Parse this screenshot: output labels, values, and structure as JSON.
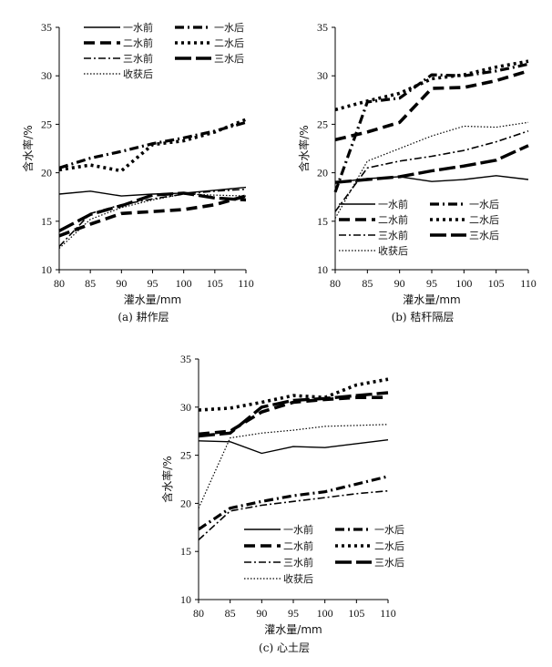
{
  "chart_data": [
    {
      "type": "line",
      "id": "a",
      "caption": "(a) 耕作层",
      "xlabel": "灌水量/mm",
      "ylabel": "含水率/%",
      "xlim": [
        80,
        110
      ],
      "ylim": [
        10,
        35
      ],
      "xticks": [
        80,
        85,
        90,
        95,
        100,
        105,
        110
      ],
      "yticks": [
        10,
        15,
        20,
        25,
        30,
        35
      ],
      "x": [
        80,
        85,
        90,
        95,
        100,
        105,
        110
      ],
      "legend_placement": "top",
      "series": [
        {
          "name": "一水前",
          "style": "solid",
          "values": [
            17.8,
            18.1,
            17.6,
            17.8,
            17.9,
            18.2,
            18.5
          ]
        },
        {
          "name": "一水后",
          "style": "dashdot",
          "values": [
            20.5,
            21.5,
            22.2,
            23.0,
            23.6,
            24.3,
            25.2
          ]
        },
        {
          "name": "二水前",
          "style": "dash-thick",
          "values": [
            13.5,
            14.7,
            15.8,
            16.0,
            16.2,
            16.7,
            17.6
          ]
        },
        {
          "name": "二水后",
          "style": "dot-thick",
          "values": [
            20.3,
            20.8,
            20.2,
            22.9,
            23.3,
            24.2,
            25.5
          ]
        },
        {
          "name": "三水前",
          "style": "dashdot-thin",
          "values": [
            12.4,
            15.8,
            16.7,
            17.3,
            17.8,
            18.1,
            18.3
          ]
        },
        {
          "name": "三水后",
          "style": "longdash-thick",
          "values": [
            14.0,
            15.7,
            16.6,
            17.7,
            17.9,
            17.4,
            17.2
          ]
        },
        {
          "name": "收获后",
          "style": "dotted-thin",
          "values": [
            12.2,
            15.2,
            16.4,
            17.2,
            17.8,
            17.7,
            17.6
          ]
        }
      ]
    },
    {
      "type": "line",
      "id": "b",
      "caption": "(b) 秸秆隔层",
      "xlabel": "灌水量/mm",
      "ylabel": "含水率/%",
      "xlim": [
        80,
        110
      ],
      "ylim": [
        10,
        35
      ],
      "xticks": [
        80,
        85,
        90,
        95,
        100,
        105,
        110
      ],
      "yticks": [
        10,
        15,
        20,
        25,
        30,
        35
      ],
      "x": [
        80,
        85,
        90,
        95,
        100,
        105,
        110
      ],
      "legend_placement": "bottom",
      "series": [
        {
          "name": "一水前",
          "style": "solid",
          "values": [
            19.0,
            19.4,
            19.6,
            19.1,
            19.3,
            19.7,
            19.3
          ]
        },
        {
          "name": "一水后",
          "style": "dashdot",
          "values": [
            18.0,
            27.3,
            27.7,
            30.1,
            30.0,
            30.5,
            31.2
          ]
        },
        {
          "name": "二水前",
          "style": "dash-thick",
          "values": [
            23.4,
            24.2,
            25.2,
            28.7,
            28.8,
            29.5,
            30.5
          ]
        },
        {
          "name": "二水后",
          "style": "dot-thick",
          "values": [
            26.5,
            27.4,
            28.2,
            29.7,
            30.1,
            30.9,
            31.5
          ]
        },
        {
          "name": "三水前",
          "style": "dashdot-thin",
          "values": [
            16.0,
            20.5,
            21.2,
            21.7,
            22.3,
            23.2,
            24.3
          ]
        },
        {
          "name": "三水后",
          "style": "longdash-thick",
          "values": [
            19.0,
            19.3,
            19.6,
            20.2,
            20.7,
            21.3,
            22.8
          ]
        },
        {
          "name": "收获后",
          "style": "dotted-thin",
          "values": [
            15.3,
            21.2,
            22.5,
            23.8,
            24.8,
            24.7,
            25.2
          ]
        }
      ]
    },
    {
      "type": "line",
      "id": "c",
      "caption": "(c) 心土层",
      "xlabel": "灌水量/mm",
      "ylabel": "含水率/%",
      "xlim": [
        80,
        110
      ],
      "ylim": [
        10,
        35
      ],
      "xticks": [
        80,
        85,
        90,
        95,
        100,
        105,
        110
      ],
      "yticks": [
        10,
        15,
        20,
        25,
        30,
        35
      ],
      "x": [
        80,
        85,
        90,
        95,
        100,
        105,
        110
      ],
      "legend_placement": "bottom",
      "series": [
        {
          "name": "一水前",
          "style": "solid",
          "values": [
            26.5,
            26.4,
            25.2,
            25.9,
            25.8,
            26.2,
            26.6
          ]
        },
        {
          "name": "一水后",
          "style": "dashdot",
          "values": [
            17.3,
            19.5,
            20.2,
            20.8,
            21.2,
            22.0,
            22.8
          ]
        },
        {
          "name": "二水前",
          "style": "dash-thick",
          "values": [
            27.2,
            27.5,
            29.5,
            30.5,
            30.8,
            31.0,
            31.0
          ]
        },
        {
          "name": "二水后",
          "style": "dot-thick",
          "values": [
            29.7,
            29.9,
            30.5,
            31.2,
            31.0,
            32.3,
            32.9
          ]
        },
        {
          "name": "三水前",
          "style": "dashdot-thin",
          "values": [
            16.2,
            19.2,
            19.8,
            20.2,
            20.6,
            21.0,
            21.3
          ]
        },
        {
          "name": "三水后",
          "style": "longdash-thick",
          "values": [
            27.0,
            27.3,
            30.0,
            30.7,
            30.9,
            31.2,
            31.5
          ]
        },
        {
          "name": "收获后",
          "style": "dotted-thin",
          "values": [
            19.5,
            26.8,
            27.3,
            27.6,
            28.0,
            28.1,
            28.2
          ]
        }
      ]
    }
  ]
}
